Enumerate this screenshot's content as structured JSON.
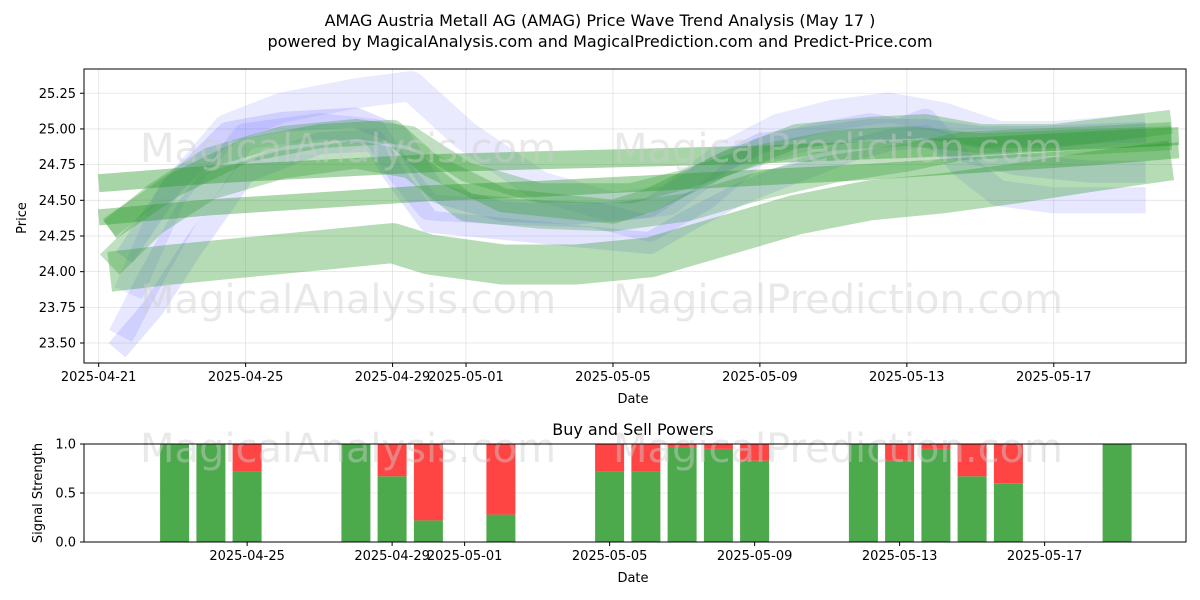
{
  "title": "AMAG Austria Metall AG (AMAG) Price Wave Trend Analysis (May 17 )",
  "subtitle": "powered by MagicalAnalysis.com and MagicalPrediction.com and Predict-Price.com",
  "watermarks": [
    "MagicalAnalysis.com",
    "MagicalPrediction.com"
  ],
  "colors": {
    "green_band": "#2e9a2e",
    "blue_band": "#6a6aff",
    "buy": "#4caa4c",
    "sell": "#ff4444"
  },
  "chart_data": [
    {
      "type": "area",
      "name": "price-wave-chart",
      "title": "",
      "xlabel": "Date",
      "ylabel": "Price",
      "x_ticks": [
        "2025-04-21",
        "2025-04-25",
        "2025-04-29",
        "2025-05-01",
        "2025-05-05",
        "2025-05-09",
        "2025-05-13",
        "2025-05-17"
      ],
      "x_tick_days": [
        0,
        4,
        8,
        10,
        14,
        18,
        22,
        26
      ],
      "xlim": [
        -0.4,
        29.6
      ],
      "y_ticks": [
        "23.50",
        "23.75",
        "24.00",
        "24.25",
        "24.50",
        "24.75",
        "25.00",
        "25.25"
      ],
      "ylim": [
        23.36,
        25.42
      ],
      "grid": true,
      "series": [
        {
          "name": "blue-wave-1",
          "color": "blue",
          "x": [
            0.6,
            1.3,
            2.5,
            4,
            6,
            7.5,
            8.2,
            9,
            11,
            13.5,
            15,
            16.5,
            18,
            19.5,
            21,
            21.8,
            22.5,
            23.5,
            24.5,
            26,
            28.5
          ],
          "y": [
            23.55,
            23.9,
            24.45,
            24.95,
            25.02,
            24.98,
            24.7,
            24.45,
            24.42,
            24.4,
            24.3,
            24.52,
            24.85,
            24.95,
            25.02,
            24.98,
            25.05,
            24.75,
            24.55,
            24.5,
            24.5
          ]
        },
        {
          "name": "blue-wave-2",
          "color": "blue",
          "x": [
            0.5,
            1.5,
            2.5,
            4,
            6,
            7.5,
            8,
            9,
            11,
            13,
            15,
            16,
            17.5,
            19,
            20.5,
            21.5,
            22.5,
            23.5,
            25,
            27,
            28.5
          ],
          "y": [
            23.45,
            23.75,
            24.15,
            24.7,
            24.9,
            24.92,
            24.7,
            24.35,
            24.3,
            24.25,
            24.2,
            24.35,
            24.55,
            24.7,
            24.85,
            24.92,
            24.95,
            24.85,
            24.75,
            24.7,
            24.7
          ]
        },
        {
          "name": "blue-wave-3",
          "color": "blue",
          "x": [
            0.8,
            2,
            3.5,
            5,
            7,
            8.5,
            10,
            12,
            14,
            15.5,
            17,
            18.5,
            20,
            21.5,
            23,
            24.5,
            26,
            28.5
          ],
          "y": [
            23.85,
            24.55,
            25.0,
            25.15,
            25.25,
            25.3,
            24.95,
            24.6,
            24.45,
            24.5,
            24.8,
            25.0,
            25.1,
            25.15,
            25.08,
            24.95,
            24.95,
            25.0
          ]
        },
        {
          "name": "blue-wave-4",
          "color": "blue",
          "x": [
            0.7,
            2,
            3.5,
            5,
            7,
            8.2,
            9.2,
            11,
            13,
            15,
            16.5,
            18,
            19.5,
            21,
            22.5,
            24,
            25.5,
            28.5
          ],
          "y": [
            24.1,
            24.6,
            24.98,
            25.05,
            25.08,
            24.95,
            24.55,
            24.42,
            24.4,
            24.45,
            24.7,
            24.9,
            24.95,
            25.0,
            25.0,
            24.95,
            24.95,
            24.98
          ]
        },
        {
          "name": "green-wave-1",
          "color": "green",
          "x": [
            0,
            3,
            6,
            9,
            12,
            15,
            18,
            21,
            24,
            27,
            29.4
          ],
          "y": [
            24.62,
            24.68,
            24.72,
            24.76,
            24.78,
            24.8,
            24.82,
            24.85,
            24.88,
            24.92,
            24.95
          ]
        },
        {
          "name": "green-wave-2",
          "color": "green",
          "x": [
            0,
            3,
            6,
            9,
            12,
            15,
            18,
            21,
            24,
            27,
            29.4
          ],
          "y": [
            24.38,
            24.45,
            24.5,
            24.55,
            24.58,
            24.62,
            24.66,
            24.7,
            24.75,
            24.8,
            24.85
          ]
        },
        {
          "name": "green-wave-3",
          "color": "green",
          "x": [
            0.3,
            1.5,
            3,
            5,
            7,
            8.5,
            10,
            12,
            14,
            16,
            18,
            20,
            22,
            23.5,
            25,
            27,
            29.2
          ],
          "y": [
            24.05,
            24.35,
            24.6,
            24.75,
            24.82,
            24.75,
            24.45,
            24.4,
            24.38,
            24.45,
            24.6,
            24.72,
            24.8,
            24.88,
            24.9,
            24.92,
            24.95
          ]
        },
        {
          "name": "green-wave-4",
          "color": "green",
          "x": [
            0.3,
            2,
            4,
            6,
            8,
            9,
            11,
            14,
            15,
            17,
            19,
            21,
            22.5,
            24,
            26,
            29.2
          ],
          "y": [
            24.3,
            24.6,
            24.85,
            24.95,
            24.98,
            24.75,
            24.5,
            24.42,
            24.5,
            24.75,
            24.95,
            25.0,
            25.02,
            24.95,
            24.95,
            25.05
          ]
        },
        {
          "name": "green-wave-5",
          "color": "green",
          "x": [
            0.3,
            2,
            4,
            6,
            8,
            9,
            11,
            13,
            15,
            17,
            19,
            21,
            23,
            25,
            27,
            29.2
          ],
          "y": [
            24.0,
            24.05,
            24.1,
            24.15,
            24.2,
            24.12,
            24.05,
            24.05,
            24.1,
            24.25,
            24.4,
            24.5,
            24.55,
            24.62,
            24.7,
            24.78
          ]
        },
        {
          "name": "green-wave-6",
          "color": "green",
          "x": [
            0.3,
            1.5,
            3,
            5,
            7,
            8.5,
            10,
            12,
            14.5,
            16,
            18,
            20,
            22,
            24,
            26,
            29.2
          ],
          "y": [
            24.3,
            24.55,
            24.8,
            24.95,
            25.0,
            24.95,
            24.7,
            24.55,
            24.55,
            24.65,
            24.82,
            24.92,
            24.95,
            24.9,
            24.92,
            24.95
          ]
        }
      ]
    },
    {
      "type": "bar",
      "name": "buy-sell-powers",
      "title": "Buy and Sell Powers",
      "xlabel": "Date",
      "ylabel": "Signal Strength",
      "x_ticks": [
        "2025-04-25",
        "2025-04-29",
        "2025-05-01",
        "2025-05-05",
        "2025-05-09",
        "2025-05-13",
        "2025-05-17"
      ],
      "x_tick_days": [
        4,
        8,
        10,
        14,
        18,
        22,
        26
      ],
      "xlim": [
        -0.5,
        29.9
      ],
      "y_ticks": [
        "0.0",
        "0.5",
        "1.0"
      ],
      "ylim": [
        0,
        1
      ],
      "grid": true,
      "x_days": [
        2,
        3,
        4,
        7,
        8,
        9,
        11,
        14,
        15,
        16,
        17,
        18,
        21,
        22,
        23,
        24,
        25,
        28
      ],
      "series": [
        {
          "name": "Buy",
          "values": [
            1.0,
            1.0,
            0.72,
            1.0,
            0.67,
            0.22,
            0.28,
            0.72,
            0.72,
            0.97,
            0.95,
            0.83,
            1.0,
            0.83,
            0.95,
            0.67,
            0.6,
            1.0
          ]
        },
        {
          "name": "Sell",
          "values": [
            0.0,
            0.0,
            0.28,
            0.0,
            0.33,
            0.78,
            0.72,
            0.28,
            0.28,
            0.03,
            0.05,
            0.17,
            0.0,
            0.17,
            0.05,
            0.33,
            0.4,
            0.0
          ]
        }
      ]
    }
  ]
}
